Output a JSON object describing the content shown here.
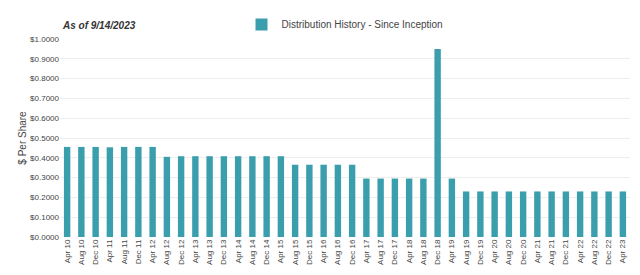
{
  "chart_data": {
    "type": "bar",
    "ylabel": "$ Per Share",
    "annotations": [
      "As of 9/14/2023"
    ],
    "categories": [
      "Apr 10",
      "Aug 10",
      "Dec 10",
      "Apr 11",
      "Aug 11",
      "Dec 11",
      "Apr 12",
      "Aug 12",
      "Dec 12",
      "Apr 13",
      "Aug 13",
      "Dec 13",
      "Apr 14",
      "Aug 14",
      "Dec 14",
      "Apr 15",
      "Aug 15",
      "Dec 15",
      "Apr 16",
      "Aug 16",
      "Dec 16",
      "Apr 17",
      "Aug 17",
      "Dec 17",
      "Apr 18",
      "Aug 18",
      "Dec 18",
      "Apr 19",
      "Aug 19",
      "Dec 19",
      "Apr 20",
      "Aug 20",
      "Dec 20",
      "Apr 21",
      "Aug 21",
      "Dec 21",
      "Apr 22",
      "Aug 22",
      "Dec 22",
      "Apr 23"
    ],
    "series": [
      {
        "name": "Distribution History - Since Inception",
        "color": "#3a9eac",
        "values": [
          0.455,
          0.455,
          0.455,
          0.453,
          0.455,
          0.455,
          0.455,
          0.405,
          0.408,
          0.408,
          0.408,
          0.408,
          0.408,
          0.408,
          0.408,
          0.408,
          0.365,
          0.365,
          0.365,
          0.365,
          0.365,
          0.295,
          0.295,
          0.295,
          0.295,
          0.295,
          0.95,
          0.295,
          0.23,
          0.23,
          0.23,
          0.23,
          0.23,
          0.23,
          0.23,
          0.23,
          0.23,
          0.23,
          0.23,
          0.23
        ]
      }
    ],
    "ylim": [
      0,
      1.0
    ],
    "yticks": [
      {
        "value": 0.0,
        "label": "$0.0000"
      },
      {
        "value": 0.1,
        "label": "$0.1000"
      },
      {
        "value": 0.2,
        "label": "$0.2000"
      },
      {
        "value": 0.3,
        "label": "$0.3000"
      },
      {
        "value": 0.4,
        "label": "$0.4000"
      },
      {
        "value": 0.5,
        "label": "$0.5000"
      },
      {
        "value": 0.6,
        "label": "$0.6000"
      },
      {
        "value": 0.7,
        "label": "$0.7000"
      },
      {
        "value": 0.8,
        "label": "$0.8000"
      },
      {
        "value": 0.9,
        "label": "$0.9000"
      },
      {
        "value": 1.0,
        "label": "$1.0000"
      }
    ],
    "grid": true,
    "legend": "top"
  }
}
